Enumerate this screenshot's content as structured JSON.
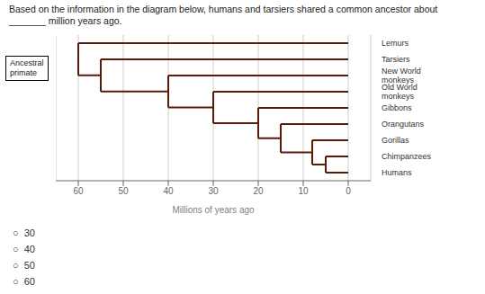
{
  "chart_data": {
    "type": "dendrogram",
    "title": "Based on the information in the diagram below, humans and tarsiers shared a common ancestor about _______ million years ago.",
    "xlabel": "Millions of years ago",
    "categories": [
      "Lemurs",
      "Tarsiers",
      "New World\nmonkeys",
      "Old World\nmonkeys",
      "Gibbons",
      "Orangutans",
      "Gorillas",
      "Chimpanzees",
      "Humans"
    ],
    "values": [
      60,
      55,
      40,
      30,
      20,
      15,
      8,
      5,
      5
    ],
    "xlim": [
      65,
      -5
    ],
    "xticks": [
      60,
      50,
      40,
      30,
      20,
      10,
      0
    ],
    "grid": true,
    "color": "#5a1a0a",
    "annotations": [
      "Ancestral\nprimate",
      "○  30",
      "○  40",
      "○  50",
      "○  60"
    ]
  }
}
